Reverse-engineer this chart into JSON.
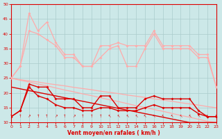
{
  "x": [
    0,
    1,
    2,
    3,
    4,
    5,
    6,
    7,
    8,
    9,
    10,
    11,
    12,
    13,
    14,
    15,
    16,
    17,
    18,
    19,
    20,
    21,
    22,
    23
  ],
  "rafales1": [
    25,
    29,
    47,
    41,
    44,
    37,
    33,
    33,
    29,
    29,
    36,
    36,
    37,
    36,
    36,
    36,
    41,
    36,
    36,
    36,
    36,
    33,
    33,
    22
  ],
  "rafales2": [
    25,
    29,
    41,
    40,
    38,
    36,
    32,
    32,
    29,
    29,
    32,
    35,
    36,
    29,
    29,
    35,
    40,
    35,
    35,
    35,
    35,
    32,
    32,
    22
  ],
  "diag_light1": [
    25,
    24.3,
    23.7,
    23.0,
    22.4,
    21.7,
    21.0,
    20.4,
    19.7,
    19.1,
    18.4,
    17.7,
    17.1,
    16.4,
    15.7,
    15.1,
    14.4,
    13.8,
    13.1,
    12.4,
    11.8,
    11.1,
    10.4,
    10.0
  ],
  "diag_light2": [
    25,
    24.5,
    24.1,
    23.7,
    23.2,
    22.8,
    22.4,
    21.9,
    21.5,
    21.1,
    20.6,
    20.2,
    19.8,
    19.3,
    18.9,
    18.5,
    18.0,
    17.6,
    17.2,
    16.7,
    16.3,
    15.9,
    15.4,
    15.0
  ],
  "moyen1": [
    12,
    14,
    23,
    22,
    22,
    18,
    18,
    18,
    15,
    15,
    19,
    19,
    15,
    15,
    15,
    18,
    19,
    18,
    18,
    18,
    18,
    14,
    12,
    12
  ],
  "moyen2": [
    12,
    14,
    22,
    19,
    18,
    16,
    15,
    15,
    14,
    14,
    15,
    15,
    14,
    14,
    14,
    15,
    16,
    15,
    15,
    15,
    15,
    13,
    12,
    12
  ],
  "diag_red": [
    22,
    21.4,
    20.8,
    20.2,
    19.6,
    19.0,
    18.4,
    17.8,
    17.2,
    16.6,
    16.0,
    15.4,
    14.8,
    14.2,
    13.6,
    13.0,
    12.4,
    11.8,
    11.2,
    10.6,
    10.0,
    10.0,
    10.0,
    10.0
  ],
  "bg_color": "#cce8e8",
  "grid_color": "#aacccc",
  "light_pink": "#ffaaaa",
  "dark_red": "#dd0000",
  "xlabel": "Vent moyen/en rafales ( km/h )",
  "ylim_min": 10,
  "ylim_max": 50,
  "xlim_min": 0,
  "xlim_max": 23
}
